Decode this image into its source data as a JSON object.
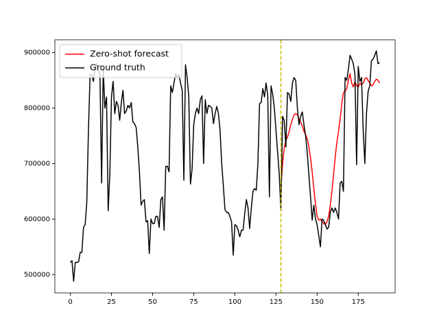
{
  "chart_data": {
    "type": "line",
    "series": [
      {
        "name": "Zero-shot forecast",
        "color": "#ff0000",
        "x": [
          128,
          129,
          130,
          131,
          132,
          133,
          134,
          135,
          136,
          137,
          138,
          139,
          140,
          141,
          142,
          143,
          144,
          145,
          146,
          147,
          148,
          149,
          150,
          151,
          152,
          153,
          154,
          155,
          156,
          157,
          158,
          159,
          160,
          161,
          162,
          163,
          164,
          165,
          166,
          167,
          168,
          169,
          170,
          171,
          172,
          173,
          174,
          175,
          176,
          177,
          178,
          179,
          180,
          181,
          182,
          183,
          184,
          185,
          186,
          187,
          188
        ],
        "values": [
          655000,
          700000,
          728000,
          742000,
          748000,
          758000,
          770000,
          780000,
          788000,
          790000,
          788000,
          780000,
          775000,
          768000,
          758000,
          752000,
          745000,
          730000,
          710000,
          685000,
          655000,
          628000,
          605000,
          598000,
          600000,
          596000,
          592000,
          590000,
          595000,
          605000,
          625000,
          650000,
          680000,
          712000,
          738000,
          758000,
          780000,
          808000,
          828000,
          830000,
          835000,
          850000,
          862000,
          845000,
          838000,
          848000,
          840000,
          838000,
          845000,
          842000,
          845000,
          852000,
          855000,
          850000,
          845000,
          840000,
          842000,
          848000,
          852000,
          850000,
          845000
        ]
      },
      {
        "name": "Ground truth",
        "color": "#000000",
        "x": [
          0,
          1,
          2,
          3,
          4,
          5,
          6,
          7,
          8,
          9,
          10,
          11,
          12,
          13,
          14,
          15,
          16,
          17,
          18,
          19,
          20,
          21,
          22,
          23,
          24,
          25,
          26,
          27,
          28,
          29,
          30,
          31,
          32,
          33,
          34,
          35,
          36,
          37,
          38,
          39,
          40,
          41,
          42,
          43,
          44,
          45,
          46,
          47,
          48,
          49,
          50,
          51,
          52,
          53,
          54,
          55,
          56,
          57,
          58,
          59,
          60,
          61,
          62,
          63,
          64,
          65,
          66,
          67,
          68,
          69,
          70,
          71,
          72,
          73,
          74,
          75,
          76,
          77,
          78,
          79,
          80,
          81,
          82,
          83,
          84,
          85,
          86,
          87,
          88,
          89,
          90,
          91,
          92,
          93,
          94,
          95,
          96,
          97,
          98,
          99,
          100,
          101,
          102,
          103,
          104,
          105,
          106,
          107,
          108,
          109,
          110,
          111,
          112,
          113,
          114,
          115,
          116,
          117,
          118,
          119,
          120,
          121,
          122,
          123,
          124,
          125,
          126,
          127,
          128,
          129,
          130,
          131,
          132,
          133,
          134,
          135,
          136,
          137,
          138,
          139,
          140,
          141,
          142,
          143,
          144,
          145,
          146,
          147,
          148,
          149,
          150,
          151,
          152,
          153,
          154,
          155,
          156,
          157,
          158,
          159,
          160,
          161,
          162,
          163,
          164,
          165,
          166,
          167,
          168,
          169,
          170,
          171,
          172,
          173,
          174,
          175,
          176,
          177,
          178,
          179,
          180,
          181,
          182,
          183,
          184,
          185,
          186,
          187,
          188
        ],
        "values": [
          522000,
          525000,
          488000,
          522000,
          522000,
          523000,
          540000,
          540000,
          585000,
          590000,
          630000,
          760000,
          860000,
          860000,
          848000,
          870000,
          880000,
          870000,
          860000,
          665000,
          870000,
          800000,
          820000,
          615000,
          680000,
          820000,
          848000,
          790000,
          812000,
          805000,
          778000,
          810000,
          832000,
          790000,
          795000,
          805000,
          800000,
          810000,
          775000,
          772000,
          765000,
          730000,
          685000,
          625000,
          632000,
          635000,
          595000,
          597000,
          538000,
          600000,
          592000,
          592000,
          605000,
          605000,
          585000,
          635000,
          640000,
          580000,
          695000,
          695000,
          685000,
          840000,
          828000,
          845000,
          862000,
          855000,
          860000,
          845000,
          832000,
          670000,
          878000,
          855000,
          820000,
          663000,
          690000,
          770000,
          790000,
          800000,
          790000,
          815000,
          822000,
          700000,
          815000,
          790000,
          805000,
          803000,
          800000,
          772000,
          790000,
          803000,
          790000,
          760000,
          700000,
          660000,
          617000,
          612000,
          612000,
          605000,
          595000,
          535000,
          590000,
          588000,
          580000,
          568000,
          580000,
          580000,
          610000,
          635000,
          620000,
          583000,
          620000,
          650000,
          655000,
          652000,
          700000,
          808000,
          810000,
          835000,
          820000,
          845000,
          822000,
          640000,
          840000,
          825000,
          800000,
          760000,
          720000,
          680000,
          615000,
          785000,
          778000,
          730000,
          828000,
          825000,
          812000,
          845000,
          855000,
          850000,
          800000,
          770000,
          785000,
          793000,
          770000,
          750000,
          720000,
          680000,
          640000,
          598000,
          625000,
          600000,
          590000,
          570000,
          550000,
          600000,
          598000,
          590000,
          582000,
          585000,
          612000,
          620000,
          612000,
          620000,
          612000,
          600000,
          665000,
          668000,
          650000,
          855000,
          850000,
          870000,
          895000,
          888000,
          880000,
          860000,
          698000,
          875000,
          848000,
          855000,
          760000,
          700000,
          790000,
          830000,
          840000,
          885000,
          888000,
          895000,
          903000,
          880000,
          882000
        ]
      }
    ],
    "vline": {
      "x": 128,
      "color": "#bfbf00"
    },
    "xlim": [
      -9.4,
      197.4
    ],
    "xticks": [
      0,
      25,
      50,
      75,
      100,
      125,
      150,
      175
    ],
    "ylim": [
      467000,
      923000
    ],
    "yticks": [
      500000,
      600000,
      700000,
      800000,
      900000
    ],
    "legend": "upper left"
  }
}
